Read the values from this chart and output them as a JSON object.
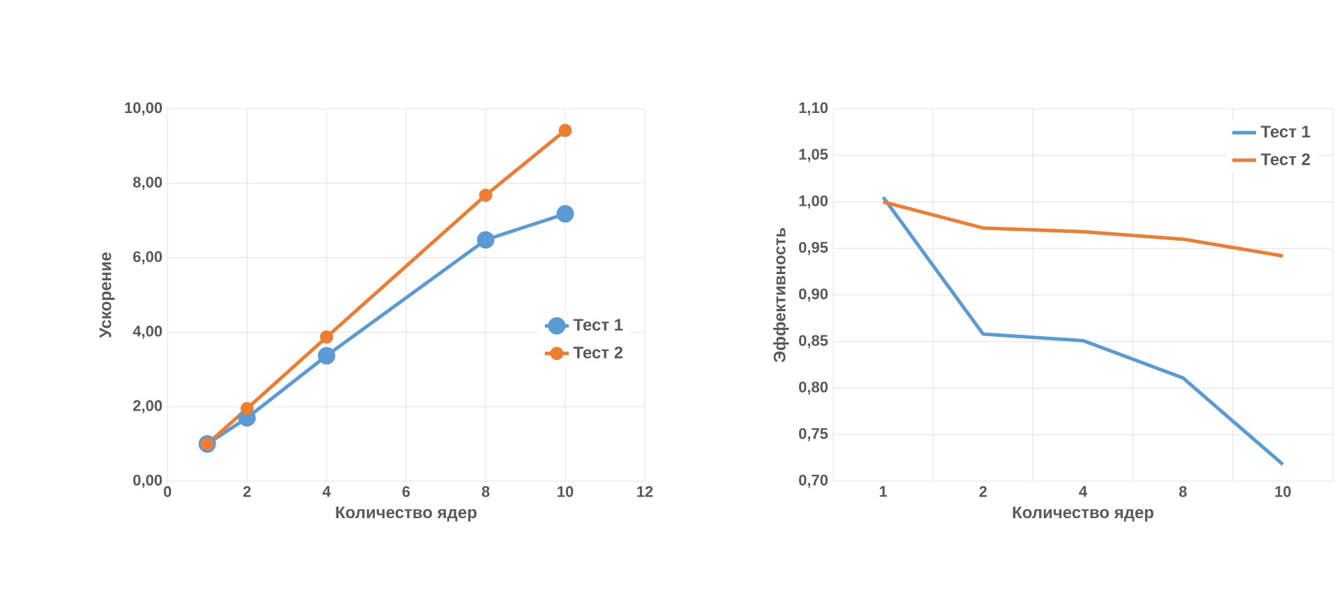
{
  "chart_data": [
    {
      "type": "line",
      "x": [
        1,
        2,
        4,
        8,
        10
      ],
      "xlabel": "Количество ядер",
      "ylabel": "Ускорение",
      "xlim": [
        0,
        12
      ],
      "xticks": [
        0,
        2,
        4,
        6,
        8,
        10,
        12
      ],
      "ylim": [
        0,
        10
      ],
      "yticks": [
        {
          "value": 0,
          "label": "0,00"
        },
        {
          "value": 2,
          "label": "2,00"
        },
        {
          "value": 4,
          "label": "4,00"
        },
        {
          "value": 6,
          "label": "6,00"
        },
        {
          "value": 8,
          "label": "8,00"
        },
        {
          "value": 10,
          "label": "10,00"
        }
      ],
      "grid": true,
      "legend": "right",
      "marker": "circle",
      "series": [
        {
          "name": "Тест 1",
          "color": "#5b9bd5",
          "values": [
            1.0,
            1.7,
            3.37,
            6.48,
            7.18
          ]
        },
        {
          "name": "Тест 2",
          "color": "#ed7d31",
          "values": [
            1.0,
            1.95,
            3.87,
            7.68,
            9.42
          ]
        }
      ]
    },
    {
      "type": "line",
      "categories": [
        "1",
        "2",
        "4",
        "8",
        "10"
      ],
      "xlabel": "Количество ядер",
      "ylabel": "Эффективность",
      "ylim": [
        0.7,
        1.1
      ],
      "yticks": [
        {
          "value": 0.7,
          "label": "0,70"
        },
        {
          "value": 0.75,
          "label": "0,75"
        },
        {
          "value": 0.8,
          "label": "0,80"
        },
        {
          "value": 0.85,
          "label": "0,85"
        },
        {
          "value": 0.9,
          "label": "0,90"
        },
        {
          "value": 0.95,
          "label": "0,95"
        },
        {
          "value": 1.0,
          "label": "1,00"
        },
        {
          "value": 1.05,
          "label": "1,05"
        },
        {
          "value": 1.1,
          "label": "1,10"
        }
      ],
      "grid": true,
      "legend": "top right",
      "series": [
        {
          "name": "Тест 1",
          "color": "#5b9bd5",
          "values": [
            1.005,
            0.858,
            0.851,
            0.811,
            0.718
          ]
        },
        {
          "name": "Тест 2",
          "color": "#ed7d31",
          "values": [
            1.0,
            0.972,
            0.968,
            0.96,
            0.942
          ]
        }
      ]
    }
  ]
}
